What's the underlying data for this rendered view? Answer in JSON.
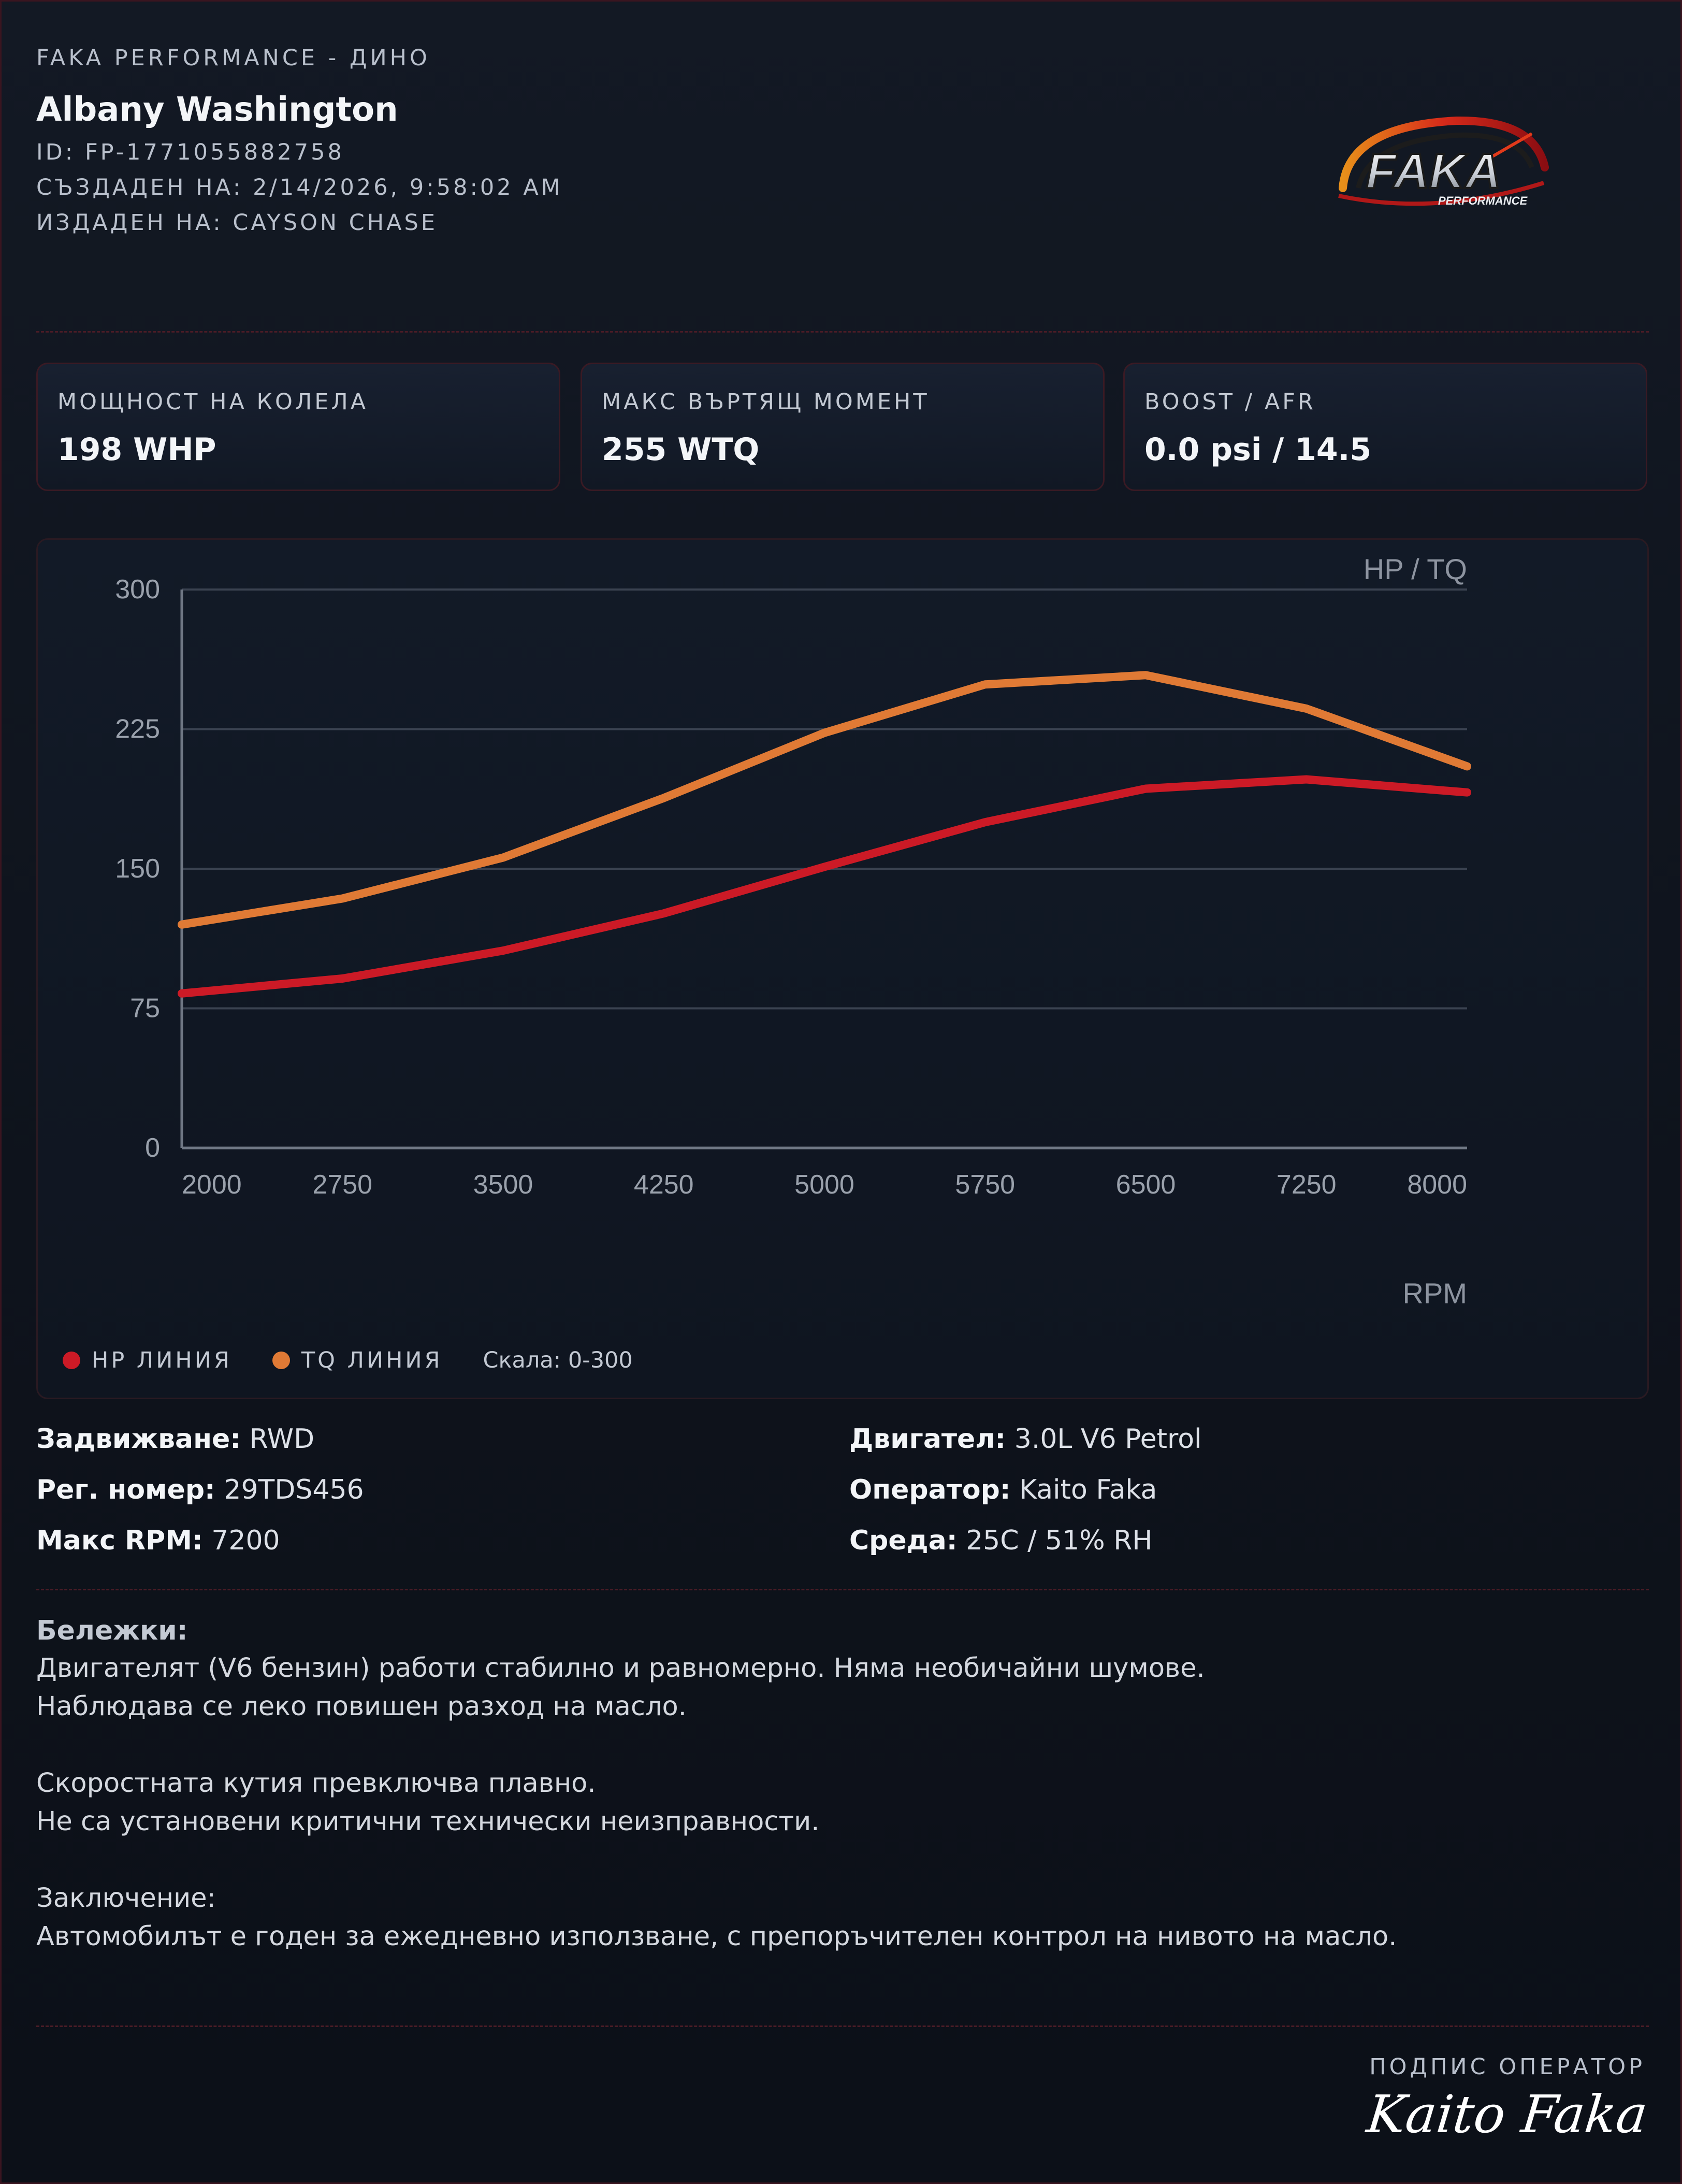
{
  "header": {
    "kicker": "FAKA PERFORMANCE - ДИНО",
    "customer": "Albany Washington",
    "id": "ID: FP-1771055882758",
    "created": "СЪЗДАДЕН НА: 2/14/2026, 9:58:02 AM",
    "issued": "ИЗДАДЕН НА: CAYSON CHASE"
  },
  "logo": {
    "text": "FAKA",
    "subtext": "PERFORMANCE"
  },
  "stats": [
    {
      "label": "МОЩНОСТ НА КОЛЕЛА",
      "value": "198 WHP"
    },
    {
      "label": "МАКС ВЪРТЯЩ МОМЕНТ",
      "value": "255 WTQ"
    },
    {
      "label": "BOOST / AFR",
      "value": "0.0 psi / 14.5"
    }
  ],
  "chart_data": {
    "type": "line",
    "title": "",
    "ylabel": "HP / TQ",
    "xlabel": "RPM",
    "x": [
      2000,
      2750,
      3500,
      4250,
      5000,
      5750,
      6500,
      7250,
      8000
    ],
    "ylim": [
      0,
      300
    ],
    "yticks": [
      0,
      75,
      150,
      225,
      300
    ],
    "grid": true,
    "series": [
      {
        "name": "HP ЛИНИЯ",
        "color": "#cc1a26",
        "values": [
          83,
          91,
          106,
          126,
          151,
          175,
          193,
          198,
          191
        ]
      },
      {
        "name": "TQ ЛИНИЯ",
        "color": "#e07a35",
        "values": [
          120,
          134,
          156,
          188,
          223,
          249,
          254,
          236,
          205
        ]
      }
    ],
    "scale_note": "Скала: 0-300"
  },
  "specs": [
    {
      "key": "Задвижване:",
      "value": "RWD"
    },
    {
      "key": "Двигател:",
      "value": "3.0L V6 Petrol"
    },
    {
      "key": "Рег. номер:",
      "value": "29TDS456"
    },
    {
      "key": "Оператор:",
      "value": "Kaito Faka"
    },
    {
      "key": "Макс RPM:",
      "value": "7200"
    },
    {
      "key": "Среда:",
      "value": "25C / 51% RH"
    }
  ],
  "notes": {
    "heading": "Бележки:",
    "lines": [
      "Двигателят (V6 бензин) работи стабилно и равномерно. Няма необичайни шумове.",
      "Наблюдава се леко повишен разход на масло.",
      "",
      "Скоростната кутия превключва плавно.",
      "Не са установени критични технически неизправности.",
      "",
      "Заключение:",
      "Автомобилът е годен за ежедневно използване, с препоръчителен контрол на нивото на масло."
    ]
  },
  "signature": {
    "label": "ПОДПИС ОПЕРАТОР",
    "name": "Kaito Faka"
  }
}
